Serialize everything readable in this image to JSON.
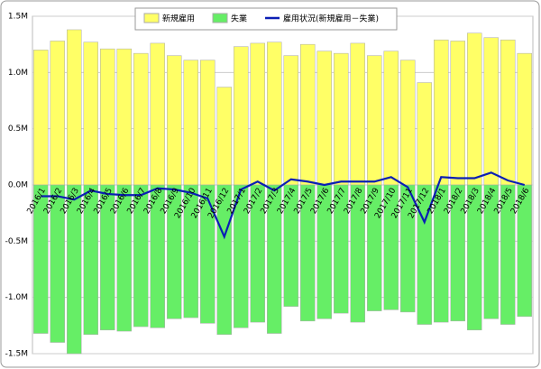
{
  "chart_data": {
    "type": "bar-line",
    "categories": [
      "2016/1",
      "2016/2",
      "2016/3",
      "2016/4",
      "2016/5",
      "2016/6",
      "2016/7",
      "2016/8",
      "2016/9",
      "2016/10",
      "2016/11",
      "2016/12",
      "2017/1",
      "2017/2",
      "2017/3",
      "2017/4",
      "2017/5",
      "2017/6",
      "2017/7",
      "2017/8",
      "2017/9",
      "2017/10",
      "2017/11",
      "2017/12",
      "2018/1",
      "2018/2",
      "2018/3",
      "2018/4",
      "2018/5",
      "2018/6"
    ],
    "series": [
      {
        "name": "新規雇用",
        "color": "#ffff66",
        "kind": "bar",
        "values": [
          1.2,
          1.28,
          1.38,
          1.27,
          1.21,
          1.21,
          1.17,
          1.26,
          1.15,
          1.11,
          1.11,
          0.87,
          1.23,
          1.26,
          1.27,
          1.15,
          1.25,
          1.19,
          1.17,
          1.26,
          1.15,
          1.19,
          1.11,
          0.91,
          1.29,
          1.28,
          1.35,
          1.31,
          1.29,
          1.17
        ]
      },
      {
        "name": "失業",
        "color": "#66ee66",
        "kind": "bar",
        "values": [
          -1.32,
          -1.4,
          -1.5,
          -1.33,
          -1.29,
          -1.3,
          -1.26,
          -1.27,
          -1.19,
          -1.18,
          -1.23,
          -1.33,
          -1.27,
          -1.22,
          -1.32,
          -1.08,
          -1.21,
          -1.19,
          -1.14,
          -1.22,
          -1.12,
          -1.11,
          -1.13,
          -1.24,
          -1.22,
          -1.21,
          -1.29,
          -1.19,
          -1.24,
          -1.17
        ]
      },
      {
        "name": "雇用状況(新規雇用－失業)",
        "color": "#0a1eb4",
        "kind": "line",
        "values": [
          -0.1,
          -0.1,
          -0.13,
          -0.05,
          -0.08,
          -0.09,
          -0.09,
          -0.03,
          -0.04,
          -0.07,
          -0.12,
          -0.46,
          -0.04,
          0.03,
          -0.05,
          0.05,
          0.03,
          0.0,
          0.03,
          0.03,
          0.03,
          0.07,
          -0.02,
          -0.33,
          0.07,
          0.06,
          0.06,
          0.11,
          0.04,
          0.0
        ]
      }
    ],
    "ylim": [
      -1.5,
      1.5
    ],
    "yticks": [
      {
        "value": -1.5,
        "label": "-1.5M"
      },
      {
        "value": -1.0,
        "label": "-1.0M"
      },
      {
        "value": -0.5,
        "label": "-0.5M"
      },
      {
        "value": 0,
        "label": "0.0M"
      },
      {
        "value": 0.5,
        "label": "0.5M"
      },
      {
        "value": 1.0,
        "label": "1.0M"
      },
      {
        "value": 1.5,
        "label": "1.5M"
      }
    ],
    "grid": true,
    "legend": "top"
  }
}
